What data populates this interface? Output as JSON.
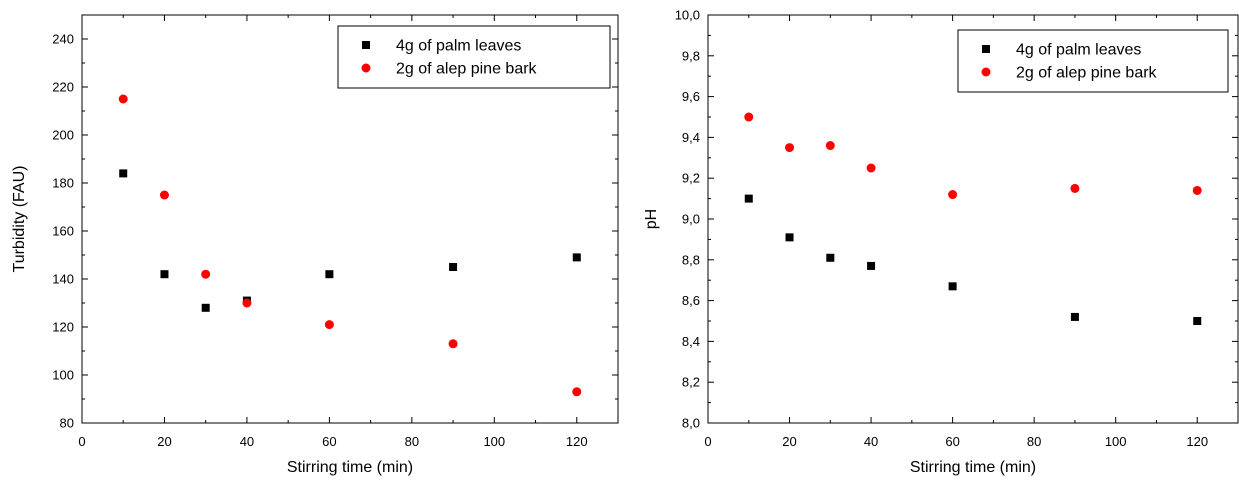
{
  "chart_data": [
    {
      "type": "scatter",
      "xlabel": "Stirring time (min)",
      "ylabel": "Turbidity (FAU)",
      "xlim": [
        0,
        130
      ],
      "ylim": [
        80,
        250
      ],
      "x_ticks": [
        0,
        20,
        40,
        60,
        80,
        100,
        120
      ],
      "x_tick_labels": [
        "0",
        "20",
        "40",
        "60",
        "80",
        "100",
        "120"
      ],
      "y_ticks": [
        80,
        100,
        120,
        140,
        160,
        180,
        200,
        220,
        240
      ],
      "y_tick_labels": [
        "80",
        "100",
        "120",
        "140",
        "160",
        "180",
        "200",
        "220",
        "240"
      ],
      "grid": false,
      "legend_position": "top-right",
      "series": [
        {
          "name": "4g of palm leaves",
          "marker": "square",
          "color": "#000000",
          "x": [
            10,
            20,
            30,
            40,
            60,
            90,
            120
          ],
          "y": [
            184,
            142,
            128,
            131,
            142,
            145,
            149
          ]
        },
        {
          "name": "2g of alep pine bark",
          "marker": "circle",
          "color": "#ff0000",
          "x": [
            10,
            20,
            30,
            40,
            60,
            90,
            120
          ],
          "y": [
            215,
            175,
            142,
            130,
            121,
            113,
            93
          ]
        }
      ]
    },
    {
      "type": "scatter",
      "xlabel": "Stirring time (min)",
      "ylabel": "pH",
      "xlim": [
        0,
        130
      ],
      "ylim": [
        8.0,
        10.0
      ],
      "x_ticks": [
        0,
        20,
        40,
        60,
        80,
        100,
        120
      ],
      "x_tick_labels": [
        "0",
        "20",
        "40",
        "60",
        "80",
        "100",
        "120"
      ],
      "y_ticks": [
        8.0,
        8.2,
        8.4,
        8.6,
        8.8,
        9.0,
        9.2,
        9.4,
        9.6,
        9.8,
        10.0
      ],
      "y_tick_labels": [
        "8,0",
        "8,2",
        "8,4",
        "8,6",
        "8,8",
        "9,0",
        "9,2",
        "9,4",
        "9,6",
        "9,8",
        "10,0"
      ],
      "grid": false,
      "legend_position": "top-right",
      "series": [
        {
          "name": "4g of palm leaves",
          "marker": "square",
          "color": "#000000",
          "x": [
            10,
            20,
            30,
            40,
            60,
            90,
            120
          ],
          "y": [
            9.1,
            8.91,
            8.81,
            8.77,
            8.67,
            8.52,
            8.5
          ]
        },
        {
          "name": "2g of alep pine bark",
          "marker": "circle",
          "color": "#ff0000",
          "x": [
            10,
            20,
            30,
            40,
            60,
            90,
            120
          ],
          "y": [
            9.5,
            9.35,
            9.36,
            9.25,
            9.12,
            9.15,
            9.14
          ]
        }
      ]
    }
  ]
}
